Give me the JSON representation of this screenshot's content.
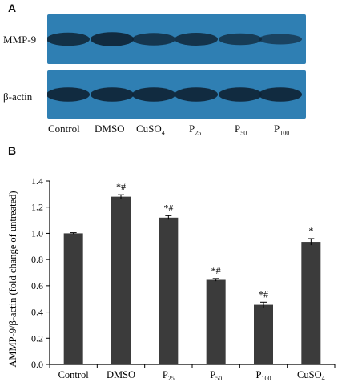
{
  "panel_a": {
    "label": "A",
    "rows": [
      {
        "label": "MMP-9",
        "band_intensity": [
          0.85,
          0.95,
          0.75,
          0.8,
          0.65,
          0.5
        ]
      },
      {
        "label": "β-actin",
        "band_intensity": [
          0.95,
          0.95,
          0.95,
          0.95,
          0.95,
          0.95
        ]
      }
    ],
    "lanes": [
      {
        "text": "Control",
        "sub": ""
      },
      {
        "text": "DMSO",
        "sub": ""
      },
      {
        "text": "CuSO",
        "sub": "4"
      },
      {
        "text": "P",
        "sub": "25"
      },
      {
        "text": "P",
        "sub": "50"
      },
      {
        "text": "P",
        "sub": "100"
      }
    ],
    "colors": {
      "blot": "#2f7fb3",
      "band": "#0f2436"
    }
  },
  "panel_b": {
    "label": "B"
  },
  "chart_data": {
    "type": "bar",
    "categories": [
      "Control",
      "DMSO",
      "P25",
      "P50",
      "P100",
      "CuSO4"
    ],
    "category_labels": [
      {
        "text": "Control",
        "sub": ""
      },
      {
        "text": "DMSO",
        "sub": ""
      },
      {
        "text": "P",
        "sub": "25"
      },
      {
        "text": "P",
        "sub": "50"
      },
      {
        "text": "P",
        "sub": "100"
      },
      {
        "text": "CuSO",
        "sub": "4"
      }
    ],
    "values": [
      1.0,
      1.28,
      1.12,
      0.645,
      0.455,
      0.935
    ],
    "errors": [
      0.005,
      0.015,
      0.015,
      0.01,
      0.02,
      0.025
    ],
    "annotations": [
      "",
      "*#",
      "*#",
      "*#",
      "*#",
      "*"
    ],
    "ylabel": "AMMP-9/β-actin (fold change of untreated)",
    "xlabel": "",
    "ylim": [
      0.0,
      1.4
    ],
    "yticks": [
      "0.0",
      "0.2",
      "0.4",
      "0.6",
      "0.8",
      "1.0",
      "1.2",
      "1.4"
    ],
    "bar_color": "#3b3b3b",
    "grid": false
  }
}
